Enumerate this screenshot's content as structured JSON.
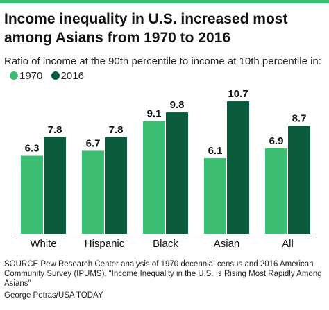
{
  "title": "Income inequality in U.S. increased most among Asians from 1970 to 2016",
  "subtitle": "Ratio of income at the 90th percentile to income at 10th percentile in:",
  "source": "SOURCE Pew Research Center analysis of 1970 decennial census and 2016 American Community Survey (IPUMS). “Income Inequality in the U.S. Is Rising Most Rapidly Among Asians”",
  "credit": "George Petras/USA TODAY",
  "colors": {
    "series_1970": "#3bbd72",
    "series_2016": "#0a5c3c",
    "topbar": "#3bbd72"
  },
  "chart_data": {
    "type": "bar",
    "categories": [
      "White",
      "Hispanic",
      "Black",
      "Asian",
      "All"
    ],
    "series": [
      {
        "name": "1970",
        "values": [
          6.3,
          6.7,
          9.1,
          6.1,
          6.9
        ]
      },
      {
        "name": "2016",
        "values": [
          7.8,
          7.8,
          9.8,
          10.7,
          8.7
        ]
      }
    ],
    "value_labels": {
      "1970": [
        "6.3",
        "6.7",
        "9.1",
        "6.1",
        "6.9"
      ],
      "2016": [
        "7.8",
        "7.8",
        "9.8",
        "10.7",
        "8.7"
      ]
    },
    "title": "Income inequality in U.S. increased most among Asians from 1970 to 2016",
    "xlabel": "",
    "ylabel": "",
    "ylim": [
      0,
      10.7
    ],
    "grid": false,
    "legend": "top-left",
    "data_labels": true
  }
}
